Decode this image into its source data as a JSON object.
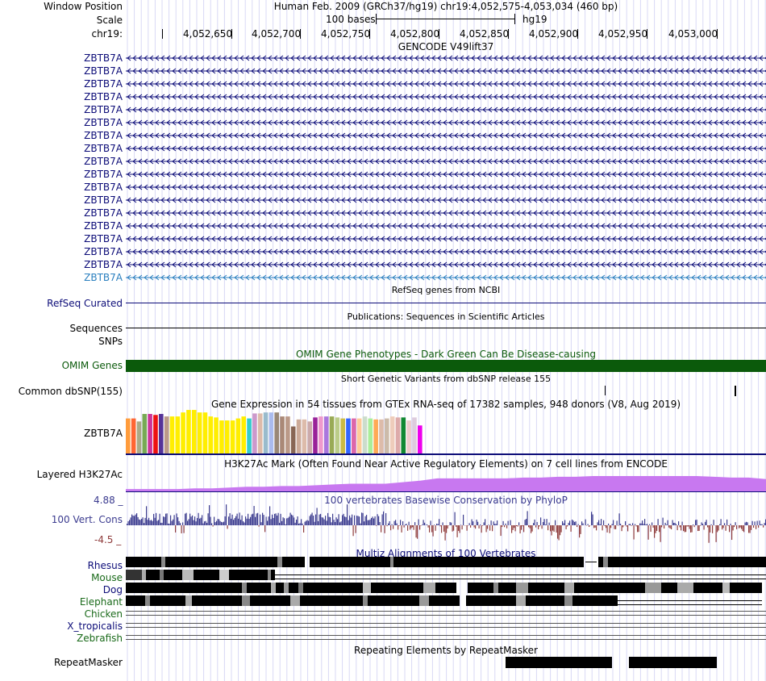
{
  "header": {
    "window_position_label": "Window Position",
    "window_position_text": "Human Feb. 2009 (GRCh37/hg19)   chr19:4,052,575-4,053,034 (460 bp)",
    "scale_label": "Scale",
    "scale_text": "100 bases",
    "scale_assembly": "hg19",
    "chrom_label": "chr19:",
    "ticks": [
      "4,052,650",
      "4,052,700",
      "4,052,750",
      "4,052,800",
      "4,052,850",
      "4,052,900",
      "4,052,950",
      "4,053,000"
    ]
  },
  "gencode": {
    "title": "GENCODE V49lift37",
    "gene_name": "ZBTB7A",
    "row_count": 18,
    "gene_color": "#0c0c78",
    "last_color": "#2a7fbf"
  },
  "refseq": {
    "title": "RefSeq genes from NCBI",
    "label": "RefSeq Curated"
  },
  "pubs": {
    "title": "Publications: Sequences in Scientific Articles",
    "label1": "Sequences",
    "label2": "SNPs"
  },
  "omim": {
    "title": "OMIM Gene Phenotypes - Dark Green Can Be Disease-causing",
    "label": "OMIM Genes",
    "color": "#0b5a0b"
  },
  "dbsnp": {
    "title": "Short Genetic Variants from dbSNP release 155",
    "label": "Common dbSNP(155)"
  },
  "gtex": {
    "title": "Gene Expression in 54 tissues from GTEx RNA-seq of 17382 samples, 948 donors (V8, Aug 2019)",
    "label": "ZBTB7A",
    "values": [
      0.7,
      0.7,
      0.64,
      0.79,
      0.79,
      0.77,
      0.79,
      0.74,
      0.74,
      0.74,
      0.82,
      0.87,
      0.87,
      0.82,
      0.82,
      0.74,
      0.72,
      0.66,
      0.66,
      0.66,
      0.7,
      0.74,
      0.7,
      0.8,
      0.8,
      0.82,
      0.82,
      0.82,
      0.74,
      0.74,
      0.54,
      0.68,
      0.68,
      0.64,
      0.72,
      0.74,
      0.74,
      0.74,
      0.72,
      0.7,
      0.7,
      0.7,
      0.7,
      0.74,
      0.7,
      0.68,
      0.68,
      0.7,
      0.74,
      0.72,
      0.72,
      0.66,
      0.72,
      0.56
    ],
    "colors": [
      "#ff9c3c",
      "#ff6633",
      "#aaaa88",
      "#77aa55",
      "#cc3399",
      "#ee1111",
      "#553399",
      "#bb9988",
      "#ffee00",
      "#ffee00",
      "#ffee00",
      "#ffee00",
      "#ffee00",
      "#ffee00",
      "#ffee00",
      "#ffee00",
      "#ffee00",
      "#ffee00",
      "#ffee00",
      "#ffee00",
      "#ffee00",
      "#ffee00",
      "#33cccc",
      "#cc99cc",
      "#ddbbaa",
      "#99bbcc",
      "#aabbee",
      "#998877",
      "#aa8877",
      "#bb9988",
      "#886655",
      "#ccaa99",
      "#ddbbaa",
      "#ccaaaa",
      "#992299",
      "#ee99cc",
      "#aa77dd",
      "#99aa55",
      "#bbcc88",
      "#ccbb44",
      "#3366ff",
      "#dd66aa",
      "#ffcc99",
      "#ccddcc",
      "#aaee99",
      "#ffaa55",
      "#ddbbaa",
      "#ccbbaa",
      "#eeccbb",
      "#ddaaaa",
      "#118833",
      "#eecccc",
      "#ddccdd",
      "#ee00ee"
    ]
  },
  "h3k27ac": {
    "title": "H3K27Ac Mark (Often Found Near Active Regulatory Elements) on 7 cell lines from ENCODE",
    "label": "Layered H3K27Ac",
    "color": "#c878f0",
    "values": [
      0.15,
      0.15,
      0.15,
      0.15,
      0.2,
      0.2,
      0.25,
      0.3,
      0.3,
      0.35,
      0.35,
      0.4,
      0.45,
      0.5,
      0.5,
      0.5,
      0.6,
      0.7,
      0.85,
      0.85,
      0.85,
      0.85,
      0.85,
      0.9,
      0.9,
      0.95,
      0.95,
      1.0,
      1.0,
      1.0,
      1.0,
      1.0,
      1.0,
      1.0,
      0.95,
      0.9,
      0.9,
      0.8
    ]
  },
  "phylop": {
    "title": "100 vertebrates Basewise Conservation by PhyloP",
    "label": "100 Vert. Cons",
    "max": "4.88 _",
    "min": "-4.5 _",
    "pos_color": "#3b3b8f",
    "neg_color": "#8f3b3b"
  },
  "multiz": {
    "title": "Multiz Alignments of 100 Vertebrates",
    "species": [
      {
        "name": "Rhesus",
        "color": "#0c0c78"
      },
      {
        "name": "Mouse",
        "color": "#1a6a1a"
      },
      {
        "name": "Dog",
        "color": "#0c0c78"
      },
      {
        "name": "Elephant",
        "color": "#1a6a1a"
      },
      {
        "name": "Chicken",
        "color": "#1a6a1a"
      },
      {
        "name": "X_tropicalis",
        "color": "#0c0c78"
      },
      {
        "name": "Zebrafish",
        "color": "#1a6a1a"
      }
    ]
  },
  "rmsk": {
    "title": "Repeating Elements by RepeatMasker",
    "label": "RepeatMasker"
  }
}
